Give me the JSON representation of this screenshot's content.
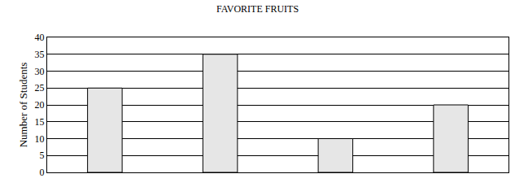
{
  "chart_data": {
    "type": "bar",
    "title": "FAVORITE FRUITS",
    "y_label": "Number of Students",
    "categories": [
      null,
      null,
      null,
      null
    ],
    "values": [
      25,
      35,
      10,
      20
    ],
    "color": "#e6e6e6",
    "ylim": [
      0,
      40
    ],
    "yticks": [
      0,
      5,
      10,
      15,
      20,
      25,
      30,
      35,
      40
    ],
    "grid": true
  }
}
